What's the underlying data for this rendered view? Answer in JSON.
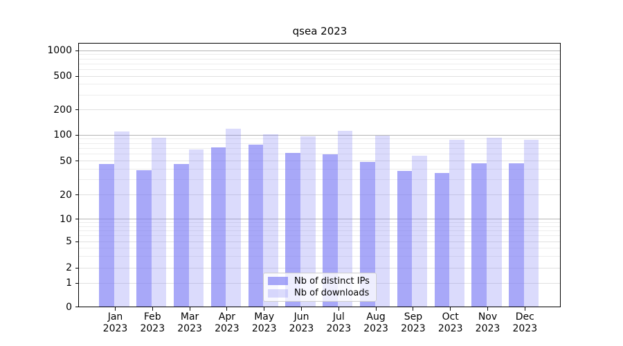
{
  "figure": {
    "title": "qsea 2023"
  },
  "chart_data": {
    "type": "bar",
    "title": "qsea 2023",
    "categories": [
      "Jan 2023",
      "Feb 2023",
      "Mar 2023",
      "Apr 2023",
      "May 2023",
      "Jun 2023",
      "Jul 2023",
      "Aug 2023",
      "Sep 2023",
      "Oct 2023",
      "Nov 2023",
      "Dec 2023"
    ],
    "x_tick_months": [
      "Jan",
      "Feb",
      "Mar",
      "Apr",
      "May",
      "Jun",
      "Jul",
      "Aug",
      "Sep",
      "Oct",
      "Nov",
      "Dec"
    ],
    "x_tick_year": "2023",
    "series": [
      {
        "name": "Nb of distinct IPs",
        "values": [
          46,
          39,
          46,
          72,
          77,
          62,
          60,
          49,
          38,
          36,
          47,
          47
        ]
      },
      {
        "name": "Nb of downloads",
        "values": [
          110,
          93,
          68,
          119,
          102,
          97,
          112,
          98,
          57,
          89,
          93,
          89
        ]
      }
    ],
    "yscale": "symlog",
    "ytick_values": [
      0,
      1,
      2,
      5,
      10,
      20,
      50,
      100,
      200,
      500,
      1000
    ],
    "ytick_labels": [
      "0",
      "1",
      "2",
      "5",
      "10",
      "20",
      "50",
      "100",
      "200",
      "500",
      "1000"
    ],
    "ylim": [
      0,
      1300
    ],
    "grid": true,
    "legend_position": "lower center"
  },
  "legend": {
    "items": [
      {
        "label": "Nb of distinct IPs"
      },
      {
        "label": "Nb of downloads"
      }
    ]
  },
  "colors": {
    "bar_fill_distinct_ips": "rgba(121,121,245,0.65)",
    "bar_fill_downloads": "rgba(121,121,245,0.27)",
    "bar_distinct_ips_hex": "#a8a8f8",
    "bar_downloads_hex": "#dcdcf9",
    "grid_major": "#b4b4b4",
    "grid_light": "#e0e0e0",
    "grid_minor": "#ececec",
    "axis": "#000000"
  }
}
